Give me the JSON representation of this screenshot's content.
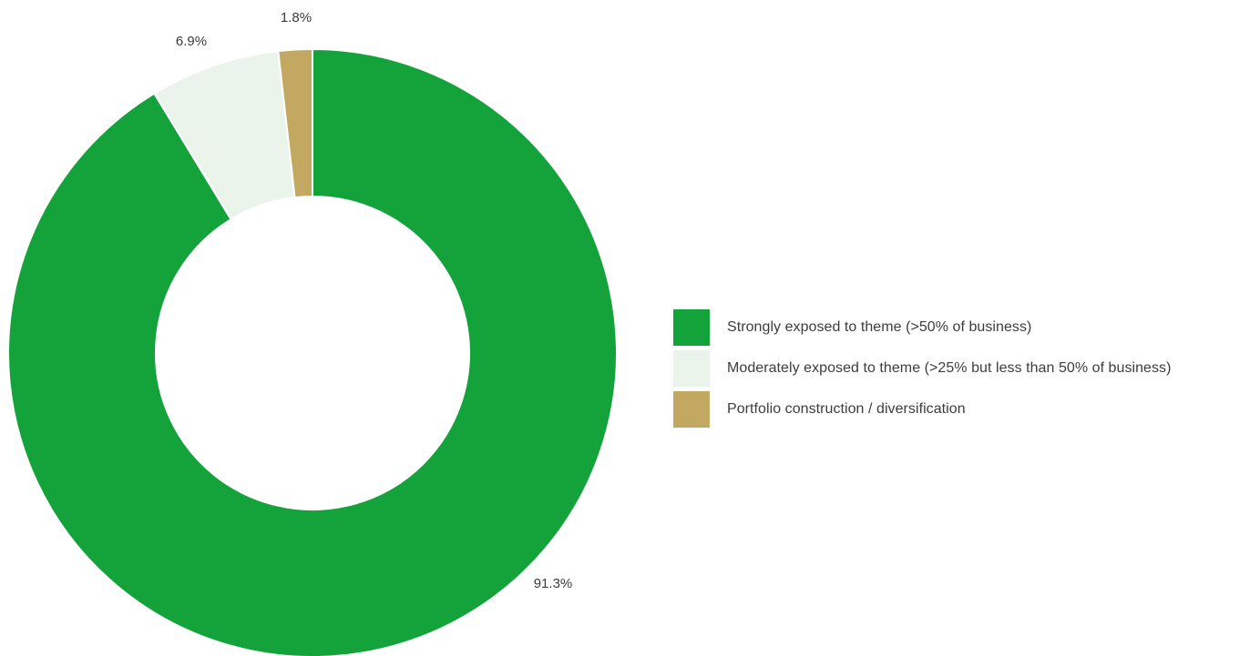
{
  "chart_data": {
    "type": "pie",
    "variant": "donut",
    "title": "",
    "categories": [
      "Strongly exposed to theme (>50% of business)",
      "Moderately exposed to theme (>25% but less than 50% of business)",
      "Portfolio construction / diversification"
    ],
    "values": [
      91.3,
      6.9,
      1.8
    ],
    "labels": [
      "91.3%",
      "6.9%",
      "1.8%"
    ],
    "colors": [
      "#13a33a",
      "#eaf4ea",
      "#c3a862"
    ],
    "legend_position": "right",
    "start": "top",
    "direction": "clockwise"
  }
}
